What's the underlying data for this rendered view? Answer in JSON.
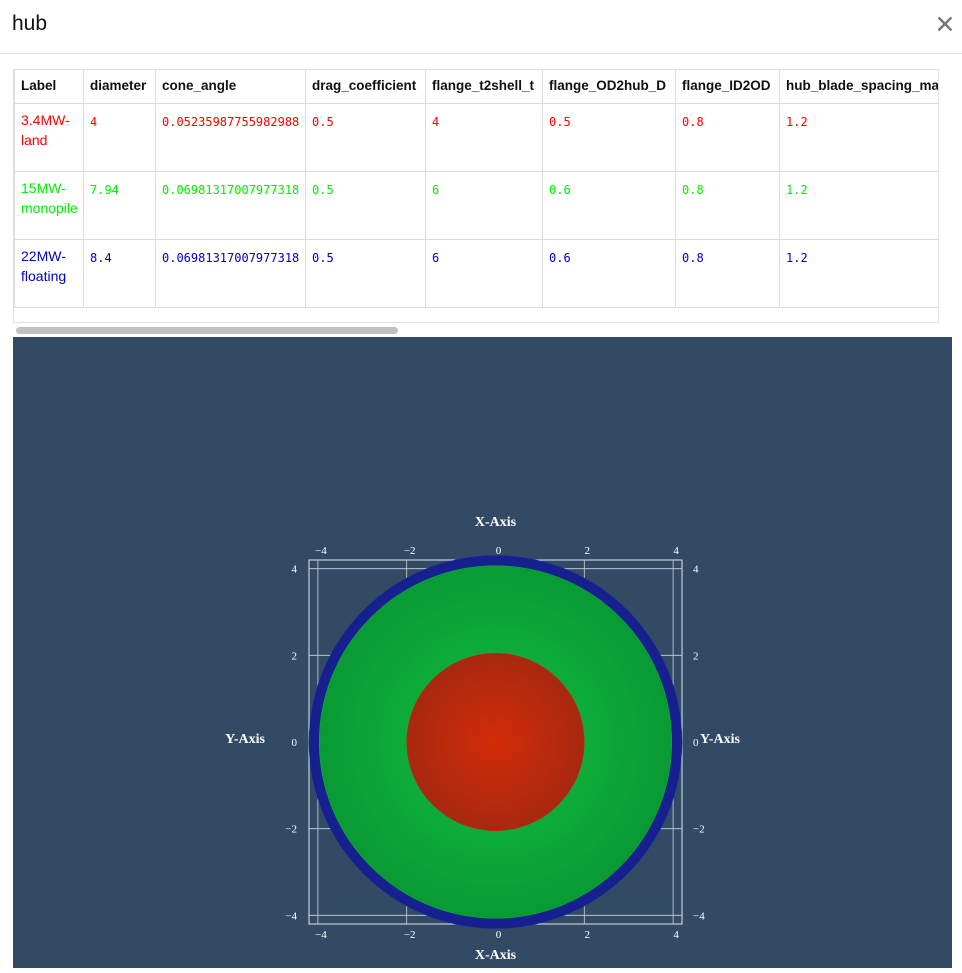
{
  "header": {
    "title": "hub",
    "close_icon": "close-icon",
    "close_glyph": "✕"
  },
  "table": {
    "columns": [
      "Label",
      "diameter",
      "cone_angle",
      "drag_coefficient",
      "flange_t2shell_t",
      "flange_OD2hub_D",
      "flange_ID2OD",
      "hub_blade_spacing_margin"
    ],
    "rows": [
      {
        "color": "#ff0000",
        "cells": [
          "3.4MW-land",
          "4",
          "0.05235987755982988",
          "0.5",
          "4",
          "0.5",
          "0.8",
          "1.2"
        ]
      },
      {
        "color": "#00ee00",
        "cells": [
          "15MW-monopile",
          "7.94",
          "0.06981317007977318",
          "0.5",
          "6",
          "0.6",
          "0.8",
          "1.2"
        ]
      },
      {
        "color": "#0000cc",
        "cells": [
          "22MW-floating",
          "8.4",
          "0.06981317007977318",
          "0.5",
          "6",
          "0.6",
          "0.8",
          "1.2"
        ]
      }
    ]
  },
  "chart_data": {
    "type": "scatter",
    "xlabel": "X-Axis",
    "ylabel": "Y-Axis",
    "xlim": [
      -4.2,
      4.2
    ],
    "ylim": [
      -4.2,
      4.2
    ],
    "x_ticks": [
      -4,
      -2,
      0,
      2,
      4
    ],
    "y_ticks": [
      -4,
      -2,
      0,
      2,
      4
    ],
    "grid": true,
    "background": "#334a65",
    "series": [
      {
        "name": "22MW-floating",
        "diameter": 8.4,
        "color": "#1a28a6"
      },
      {
        "name": "15MW-monopile",
        "diameter": 7.94,
        "color": "#0cb43c"
      },
      {
        "name": "3.4MW-land",
        "diameter": 4,
        "color": "#c42a0c"
      }
    ]
  }
}
